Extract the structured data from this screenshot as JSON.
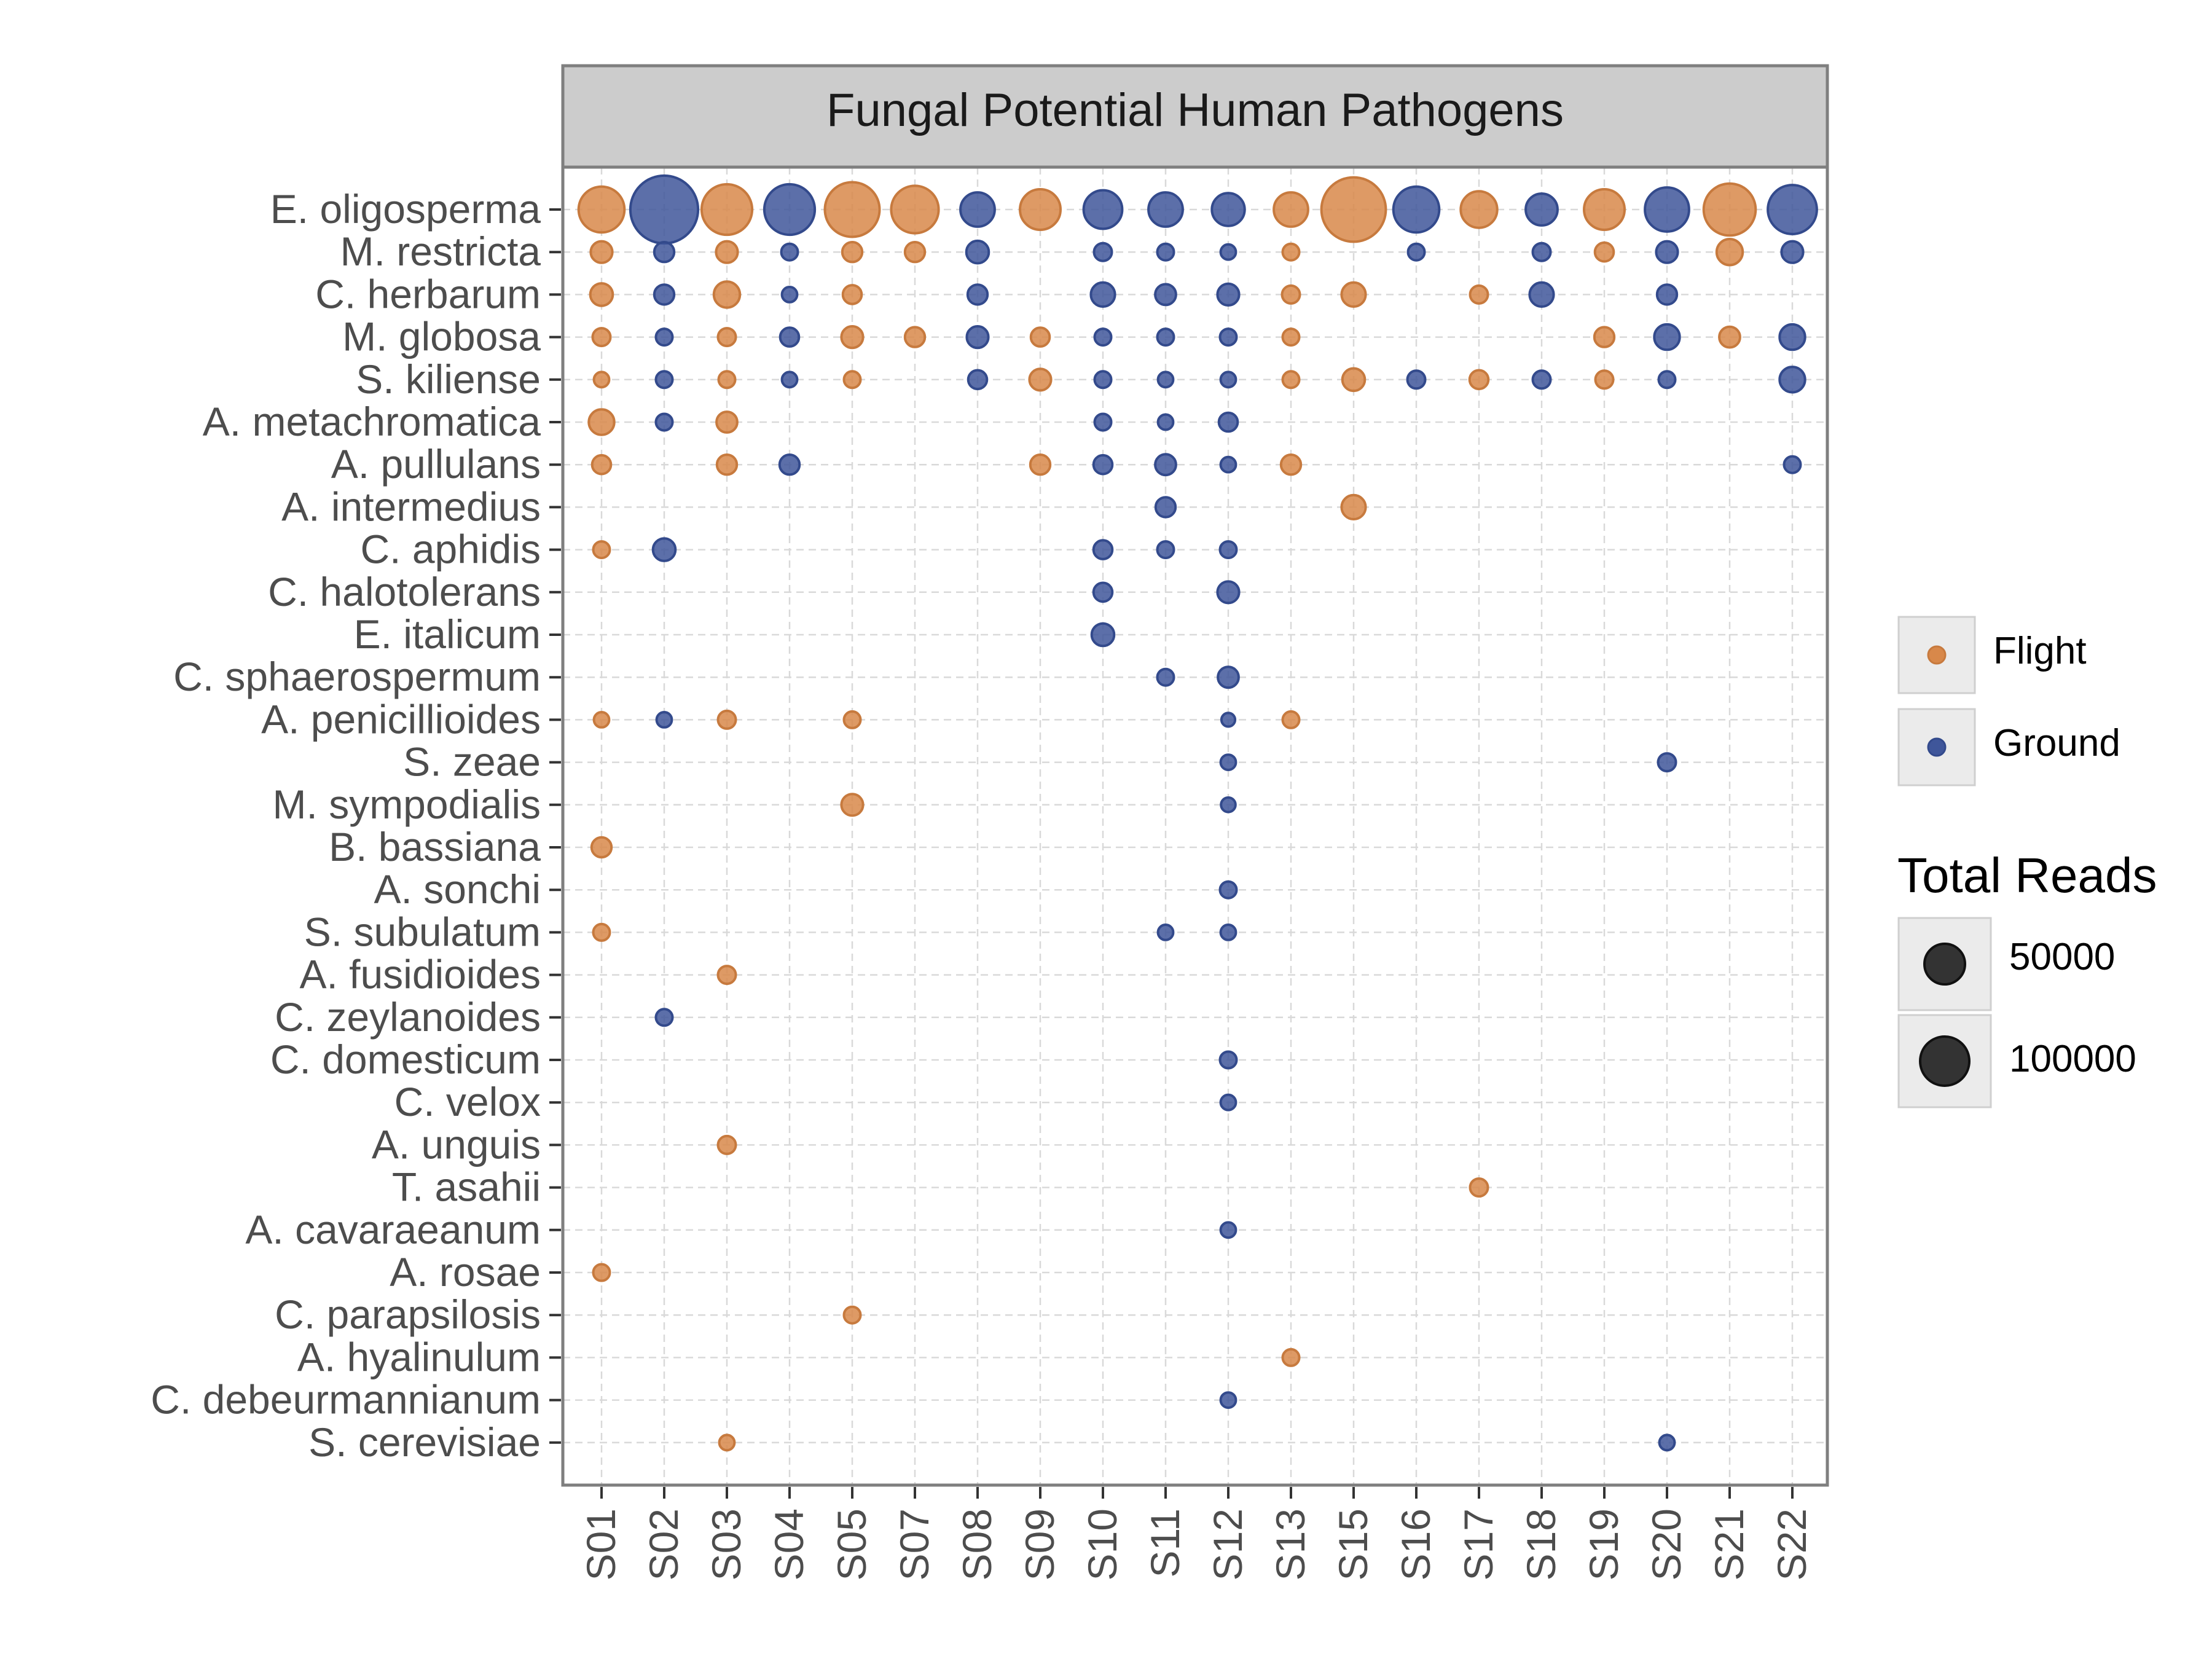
{
  "chart_data": {
    "type": "scatter",
    "title": "Fungal Potential Human Pathogens",
    "xlabel": "",
    "ylabel": "",
    "samples": [
      "S01",
      "S02",
      "S03",
      "S04",
      "S05",
      "S07",
      "S08",
      "S09",
      "S10",
      "S11",
      "S12",
      "S13",
      "S15",
      "S16",
      "S17",
      "S18",
      "S19",
      "S20",
      "S21",
      "S22"
    ],
    "sample_group": {
      "S01": "Flight",
      "S02": "Ground",
      "S03": "Flight",
      "S04": "Ground",
      "S05": "Flight",
      "S07": "Flight",
      "S08": "Ground",
      "S09": "Flight",
      "S10": "Ground",
      "S11": "Ground",
      "S12": "Ground",
      "S13": "Flight",
      "S15": "Flight",
      "S16": "Ground",
      "S17": "Flight",
      "S18": "Ground",
      "S19": "Flight",
      "S20": "Ground",
      "S21": "Flight",
      "S22": "Ground"
    },
    "species": [
      "E. oligosperma",
      "M. restricta",
      "C. herbarum",
      "M. globosa",
      "S. kiliense",
      "A. metachromatica",
      "A. pullulans",
      "A. intermedius",
      "C. aphidis",
      "C. halotolerans",
      "E. italicum",
      "C. sphaerospermum",
      "A. penicillioides",
      "S. zeae",
      "M. sympodialis",
      "B. bassiana",
      "A. sonchi",
      "S. subulatum",
      "A. fusidioides",
      "C. zeylanoides",
      "C. domesticum",
      "C. velox",
      "A. unguis",
      "T. asahii",
      "A. cavaraeanum",
      "A. rosae",
      "C. parapsilosis",
      "A. hyalinulum",
      "C. debeurmannianum",
      "S. cerevisiae"
    ],
    "points": [
      {
        "species": "E. oligosperma",
        "reads": {
          "S01": 60000,
          "S02": 145000,
          "S03": 75000,
          "S04": 75000,
          "S05": 90000,
          "S07": 65000,
          "S08": 30000,
          "S09": 45000,
          "S10": 40000,
          "S11": 30000,
          "S12": 27000,
          "S13": 30000,
          "S15": 130000,
          "S16": 60000,
          "S17": 35000,
          "S18": 25000,
          "S19": 45000,
          "S20": 55000,
          "S21": 80000,
          "S22": 70000
        }
      },
      {
        "species": "M. restricta",
        "reads": {
          "S01": 9000,
          "S02": 7000,
          "S03": 9000,
          "S04": 4000,
          "S05": 7000,
          "S07": 7000,
          "S08": 10000,
          "S10": 5000,
          "S11": 4000,
          "S12": 3000,
          "S13": 4000,
          "S16": 4000,
          "S18": 5000,
          "S19": 6000,
          "S20": 9000,
          "S21": 15000,
          "S22": 9000
        }
      },
      {
        "species": "C. herbarum",
        "reads": {
          "S01": 10000,
          "S02": 7000,
          "S03": 15000,
          "S04": 3000,
          "S05": 6000,
          "S08": 7000,
          "S10": 12000,
          "S11": 8000,
          "S12": 9000,
          "S13": 5000,
          "S15": 12000,
          "S17": 5000,
          "S18": 12000,
          "S20": 7000
        }
      },
      {
        "species": "M. globosa",
        "reads": {
          "S01": 5000,
          "S02": 4000,
          "S03": 5000,
          "S04": 6000,
          "S05": 9000,
          "S07": 7000,
          "S08": 9000,
          "S09": 6000,
          "S10": 4000,
          "S11": 4000,
          "S12": 4000,
          "S13": 4000,
          "S19": 7000,
          "S20": 14000,
          "S21": 8000,
          "S22": 14000
        }
      },
      {
        "species": "S. kiliense",
        "reads": {
          "S01": 3000,
          "S02": 4000,
          "S03": 4000,
          "S04": 3000,
          "S05": 4000,
          "S08": 6000,
          "S09": 9000,
          "S10": 4000,
          "S11": 3000,
          "S12": 3000,
          "S13": 4000,
          "S15": 10000,
          "S16": 5000,
          "S17": 6000,
          "S18": 5000,
          "S19": 5000,
          "S20": 4000,
          "S22": 14000
        }
      },
      {
        "species": "A. metachromatica",
        "reads": {
          "S01": 14000,
          "S02": 4000,
          "S03": 8000,
          "S10": 4000,
          "S11": 3000,
          "S12": 6000
        }
      },
      {
        "species": "A. pullulans",
        "reads": {
          "S01": 6000,
          "S03": 7000,
          "S04": 7000,
          "S09": 7000,
          "S10": 6000,
          "S11": 8000,
          "S12": 3000,
          "S13": 7000,
          "S22": 4000
        }
      },
      {
        "species": "A. intermedius",
        "reads": {
          "S11": 7000,
          "S15": 12000
        }
      },
      {
        "species": "C. aphidis",
        "reads": {
          "S01": 4000,
          "S02": 10000,
          "S10": 6000,
          "S11": 4000,
          "S12": 4000
        }
      },
      {
        "species": "C. halotolerans",
        "reads": {
          "S10": 6000,
          "S12": 9000
        }
      },
      {
        "species": "E. italicum",
        "reads": {
          "S10": 10000
        }
      },
      {
        "species": "C. sphaerospermum",
        "reads": {
          "S11": 4000,
          "S12": 8000
        }
      },
      {
        "species": "A. penicillioides",
        "reads": {
          "S01": 3000,
          "S02": 3000,
          "S03": 5000,
          "S05": 4000,
          "S12": 2000,
          "S13": 4000
        }
      },
      {
        "species": "S. zeae",
        "reads": {
          "S12": 3000,
          "S20": 5000
        }
      },
      {
        "species": "M. sympodialis",
        "reads": {
          "S05": 9000,
          "S12": 2500
        }
      },
      {
        "species": "B. bassiana",
        "reads": {
          "S01": 7000
        }
      },
      {
        "species": "A. sonchi",
        "reads": {
          "S12": 4000
        }
      },
      {
        "species": "S. subulatum",
        "reads": {
          "S01": 4000,
          "S11": 3000,
          "S12": 3000
        }
      },
      {
        "species": "A. fusidioides",
        "reads": {
          "S03": 5000
        }
      },
      {
        "species": "C. zeylanoides",
        "reads": {
          "S02": 4000
        }
      },
      {
        "species": "C. domesticum",
        "reads": {
          "S12": 4000
        }
      },
      {
        "species": "C. velox",
        "reads": {
          "S12": 3000
        }
      },
      {
        "species": "A. unguis",
        "reads": {
          "S03": 5000
        }
      },
      {
        "species": "T. asahii",
        "reads": {
          "S17": 5000
        }
      },
      {
        "species": "A. cavaraeanum",
        "reads": {
          "S12": 3000
        }
      },
      {
        "species": "A. rosae",
        "reads": {
          "S01": 4000
        }
      },
      {
        "species": "C. parapsilosis",
        "reads": {
          "S05": 4000
        }
      },
      {
        "species": "A. hyalinulum",
        "reads": {
          "S13": 4000
        }
      },
      {
        "species": "C. debeurmannianum",
        "reads": {
          "S12": 3000
        }
      },
      {
        "species": "S. cerevisiae",
        "reads": {
          "S03": 3000,
          "S20": 3000
        }
      }
    ],
    "legend": {
      "color_items": [
        {
          "label": "Flight",
          "color": "#d8884a"
        },
        {
          "label": "Ground",
          "color": "#3f569a"
        }
      ],
      "size_title": "Total Reads",
      "size_items": [
        {
          "label": "50000",
          "value": 50000
        },
        {
          "label": "100000",
          "value": 100000
        }
      ],
      "placement": "right"
    },
    "grid": true,
    "colors": {
      "Flight": "#d8884a",
      "Ground": "#3f569a",
      "strip": "#cccccc",
      "panel_border": "#7f7f7f",
      "grid": "#d9d9d9"
    }
  }
}
